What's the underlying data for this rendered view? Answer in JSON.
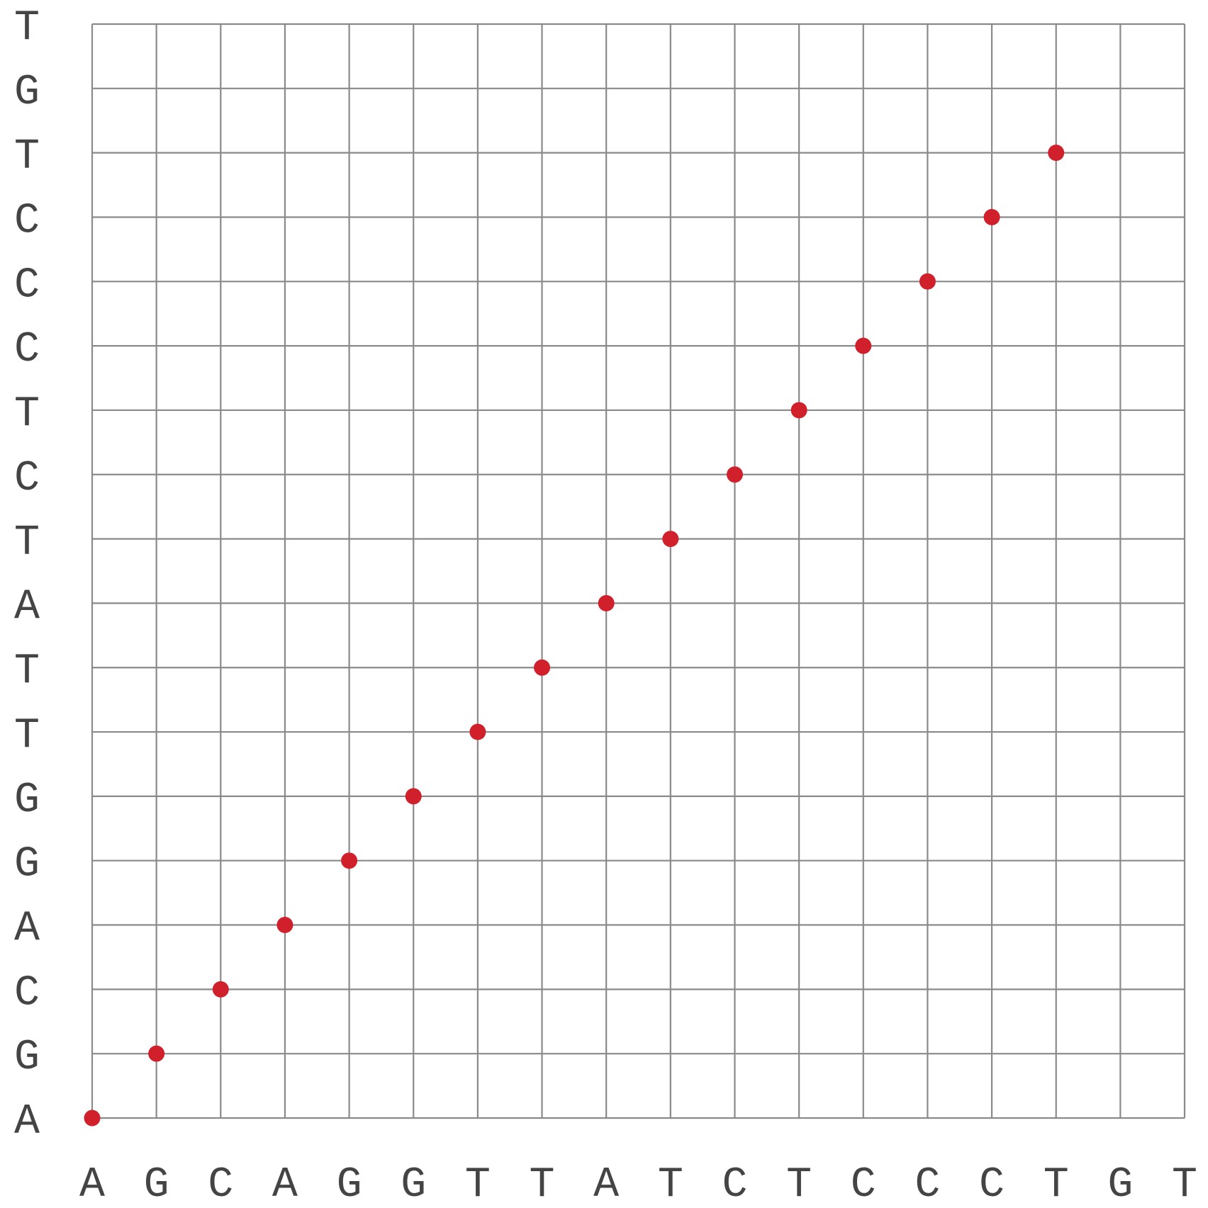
{
  "chart_data": {
    "type": "scatter",
    "title": "",
    "xlabel": "",
    "ylabel": "",
    "x_sequence": [
      "A",
      "G",
      "C",
      "A",
      "G",
      "G",
      "T",
      "T",
      "A",
      "T",
      "C",
      "T",
      "C",
      "C",
      "C",
      "T",
      "G",
      "T"
    ],
    "y_sequence": [
      "A",
      "G",
      "C",
      "A",
      "G",
      "G",
      "T",
      "T",
      "A",
      "T",
      "C",
      "T",
      "C",
      "C",
      "C",
      "T",
      "G",
      "T"
    ],
    "grid": true,
    "dot_color": "#d0202b",
    "grid_color": "#8a8a8a",
    "label_color": "#444444",
    "points": [
      {
        "x": 0,
        "y": 0
      },
      {
        "x": 1,
        "y": 1
      },
      {
        "x": 2,
        "y": 2
      },
      {
        "x": 3,
        "y": 3
      },
      {
        "x": 4,
        "y": 4
      },
      {
        "x": 5,
        "y": 5
      },
      {
        "x": 6,
        "y": 6
      },
      {
        "x": 7,
        "y": 7
      },
      {
        "x": 8,
        "y": 8
      },
      {
        "x": 9,
        "y": 9
      },
      {
        "x": 10,
        "y": 10
      },
      {
        "x": 11,
        "y": 11
      },
      {
        "x": 12,
        "y": 12
      },
      {
        "x": 13,
        "y": 13
      },
      {
        "x": 14,
        "y": 14
      },
      {
        "x": 15,
        "y": 15
      }
    ]
  }
}
